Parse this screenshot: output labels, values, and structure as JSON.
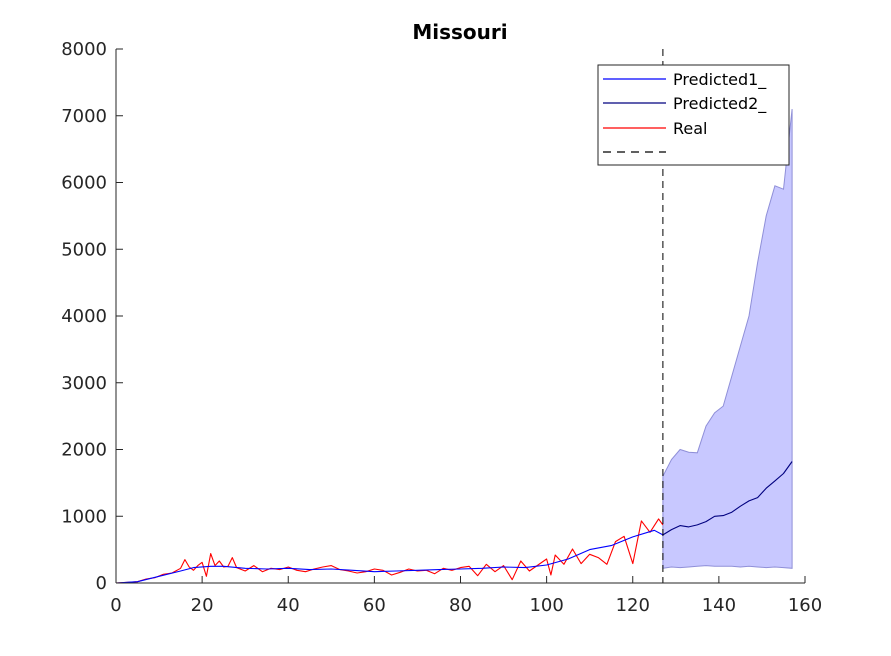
{
  "chart_data": {
    "type": "line",
    "title": "Missouri",
    "xlabel": "",
    "ylabel": "",
    "xlim": [
      0,
      160
    ],
    "ylim": [
      0,
      8000
    ],
    "xticks": [
      0,
      20,
      40,
      60,
      80,
      100,
      120,
      140,
      160
    ],
    "yticks": [
      0,
      1000,
      2000,
      3000,
      4000,
      5000,
      6000,
      7000,
      8000
    ],
    "grid": false,
    "legend_position": "top-right",
    "vertical_line_x": 127,
    "colors": {
      "predicted1": "#0000ff",
      "predicted2": "#00007f",
      "real": "#ff0000",
      "band": "#c8c8ff",
      "band_edge": "#8f8fd8",
      "vline": "#000000",
      "axes": "#262626"
    },
    "legend": [
      {
        "label": "Predicted1_",
        "color": "#0000ff",
        "style": "solid"
      },
      {
        "label": "Predicted2_",
        "color": "#00007f",
        "style": "solid"
      },
      {
        "label": "Real",
        "color": "#ff0000",
        "style": "solid"
      },
      {
        "label": "",
        "color": "#000000",
        "style": "dashed"
      }
    ],
    "series": [
      {
        "name": "Predicted1_",
        "x": [
          0,
          5,
          10,
          15,
          18,
          22,
          25,
          30,
          35,
          40,
          45,
          50,
          55,
          60,
          65,
          70,
          75,
          80,
          85,
          90,
          95,
          100,
          105,
          110,
          115,
          120,
          125,
          127
        ],
        "y": [
          0,
          20,
          100,
          180,
          230,
          250,
          250,
          220,
          210,
          220,
          200,
          210,
          190,
          170,
          180,
          190,
          200,
          210,
          220,
          240,
          230,
          270,
          360,
          500,
          560,
          690,
          790,
          720
        ]
      },
      {
        "name": "Predicted2_",
        "x": [
          127,
          129,
          131,
          133,
          135,
          137,
          139,
          141,
          143,
          145,
          147,
          149,
          151,
          153,
          155,
          157
        ],
        "y": [
          720,
          800,
          860,
          840,
          870,
          920,
          1000,
          1010,
          1060,
          1150,
          1230,
          1280,
          1420,
          1530,
          1640,
          1820
        ]
      },
      {
        "name": "Real",
        "x": [
          0,
          3,
          5,
          7,
          9,
          11,
          13,
          15,
          16,
          17,
          18,
          19,
          20,
          21,
          22,
          23,
          24,
          25,
          26,
          27,
          28,
          30,
          32,
          34,
          36,
          38,
          40,
          42,
          44,
          46,
          48,
          50,
          52,
          54,
          56,
          58,
          60,
          62,
          64,
          66,
          68,
          70,
          72,
          74,
          76,
          78,
          80,
          82,
          84,
          86,
          88,
          90,
          92,
          94,
          96,
          98,
          100,
          101,
          102,
          104,
          106,
          108,
          110,
          112,
          114,
          116,
          118,
          120,
          122,
          124,
          126,
          127
        ],
        "y": [
          0,
          10,
          20,
          60,
          80,
          130,
          150,
          220,
          350,
          240,
          190,
          260,
          310,
          100,
          440,
          260,
          330,
          240,
          250,
          380,
          230,
          180,
          260,
          170,
          220,
          200,
          240,
          190,
          170,
          210,
          240,
          260,
          200,
          180,
          150,
          170,
          210,
          190,
          120,
          160,
          210,
          180,
          190,
          140,
          220,
          190,
          230,
          250,
          110,
          280,
          170,
          260,
          50,
          330,
          180,
          270,
          360,
          120,
          420,
          280,
          510,
          290,
          430,
          380,
          280,
          620,
          700,
          290,
          930,
          760,
          960,
          870
        ]
      }
    ],
    "band": {
      "x": [
        127,
        129,
        131,
        133,
        135,
        137,
        139,
        141,
        143,
        145,
        147,
        149,
        151,
        153,
        155,
        157
      ],
      "upper": [
        1600,
        1850,
        2000,
        1960,
        1950,
        2350,
        2550,
        2650,
        3100,
        3550,
        4000,
        4800,
        5500,
        5950,
        5900,
        7100
      ],
      "lower": [
        220,
        240,
        230,
        240,
        250,
        260,
        250,
        250,
        250,
        240,
        250,
        240,
        230,
        240,
        230,
        220
      ]
    }
  }
}
